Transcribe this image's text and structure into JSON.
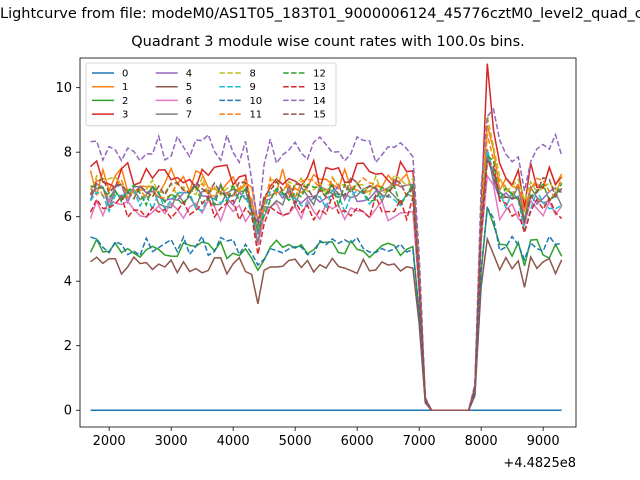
{
  "suptitle": "Lightcurve from file: modeM0/AS1T05_183T01_9000006124_45776cztM0_level2_quad_clean.evt",
  "chart_data": {
    "type": "line",
    "title": "Quadrant 3 module wise count rates with 100.0s bins.",
    "xlabel": "",
    "ylabel": "",
    "x_offset_label": "+4.4825e8",
    "xlim": [
      1530,
      9530
    ],
    "ylim": [
      -0.52,
      10.92
    ],
    "x_ticks": [
      2000,
      3000,
      4000,
      5000,
      6000,
      7000,
      8000,
      9000
    ],
    "y_ticks": [
      0,
      2,
      4,
      6,
      8,
      10
    ],
    "x_tick_labels": [
      "2000",
      "3000",
      "4000",
      "5000",
      "6000",
      "7000",
      "8000",
      "9000"
    ],
    "y_tick_labels": [
      "0",
      "2",
      "4",
      "6",
      "8",
      "10"
    ],
    "grid": false,
    "legend_location": "upper-left",
    "legend_columns": 4,
    "x_start": 1700,
    "x_step": 100,
    "x_count": 77,
    "gap_start_index": 53,
    "gap_end_index": 63,
    "series": [
      {
        "name": "0",
        "color": "#1f77b4",
        "dashed": false,
        "level": 0.0,
        "noise": 0.0,
        "seed": 1,
        "drop": 0.0,
        "peak": 0.0
      },
      {
        "name": "1",
        "color": "#ff7f0e",
        "dashed": false,
        "level": 7.1,
        "noise": 0.45,
        "seed": 2,
        "drop": 1.6,
        "peak": 1.3
      },
      {
        "name": "2",
        "color": "#2ca02c",
        "dashed": false,
        "level": 5.0,
        "noise": 0.3,
        "seed": 3,
        "drop": 0.8,
        "peak": 1.2
      },
      {
        "name": "3",
        "color": "#d62728",
        "dashed": false,
        "level": 7.3,
        "noise": 0.45,
        "seed": 4,
        "drop": 1.8,
        "peak": 3.0
      },
      {
        "name": "4",
        "color": "#9467bd",
        "dashed": false,
        "level": 6.7,
        "noise": 0.35,
        "seed": 5,
        "drop": 1.2,
        "peak": 1.2
      },
      {
        "name": "5",
        "color": "#8c564b",
        "dashed": false,
        "level": 4.5,
        "noise": 0.28,
        "seed": 6,
        "drop": 1.0,
        "peak": 0.8
      },
      {
        "name": "6",
        "color": "#e377c2",
        "dashed": false,
        "level": 6.2,
        "noise": 0.35,
        "seed": 7,
        "drop": 1.0,
        "peak": 1.2
      },
      {
        "name": "7",
        "color": "#7f7f7f",
        "dashed": false,
        "level": 6.6,
        "noise": 0.35,
        "seed": 8,
        "drop": 1.2,
        "peak": 1.4
      },
      {
        "name": "8",
        "color": "#bcbd22",
        "dashed": true,
        "level": 7.0,
        "noise": 0.35,
        "seed": 9,
        "drop": 1.2,
        "peak": 1.8
      },
      {
        "name": "9",
        "color": "#17becf",
        "dashed": true,
        "level": 6.5,
        "noise": 0.35,
        "seed": 10,
        "drop": 1.2,
        "peak": 1.4
      },
      {
        "name": "10",
        "color": "#1f77b4",
        "dashed": true,
        "level": 5.1,
        "noise": 0.3,
        "seed": 11,
        "drop": 0.8,
        "peak": 1.4
      },
      {
        "name": "11",
        "color": "#ff7f0e",
        "dashed": true,
        "level": 6.9,
        "noise": 0.35,
        "seed": 12,
        "drop": 1.2,
        "peak": 1.7
      },
      {
        "name": "12",
        "color": "#2ca02c",
        "dashed": true,
        "level": 6.7,
        "noise": 0.35,
        "seed": 13,
        "drop": 1.2,
        "peak": 1.3
      },
      {
        "name": "13",
        "color": "#d62728",
        "dashed": true,
        "level": 6.3,
        "noise": 0.4,
        "seed": 14,
        "drop": 1.2,
        "peak": 1.5
      },
      {
        "name": "14",
        "color": "#9467bd",
        "dashed": true,
        "level": 8.1,
        "noise": 0.45,
        "seed": 15,
        "drop": 2.0,
        "peak": 1.4
      },
      {
        "name": "15",
        "color": "#8c564b",
        "dashed": true,
        "level": 6.9,
        "noise": 0.35,
        "seed": 16,
        "drop": 1.2,
        "peak": 1.2
      }
    ]
  }
}
